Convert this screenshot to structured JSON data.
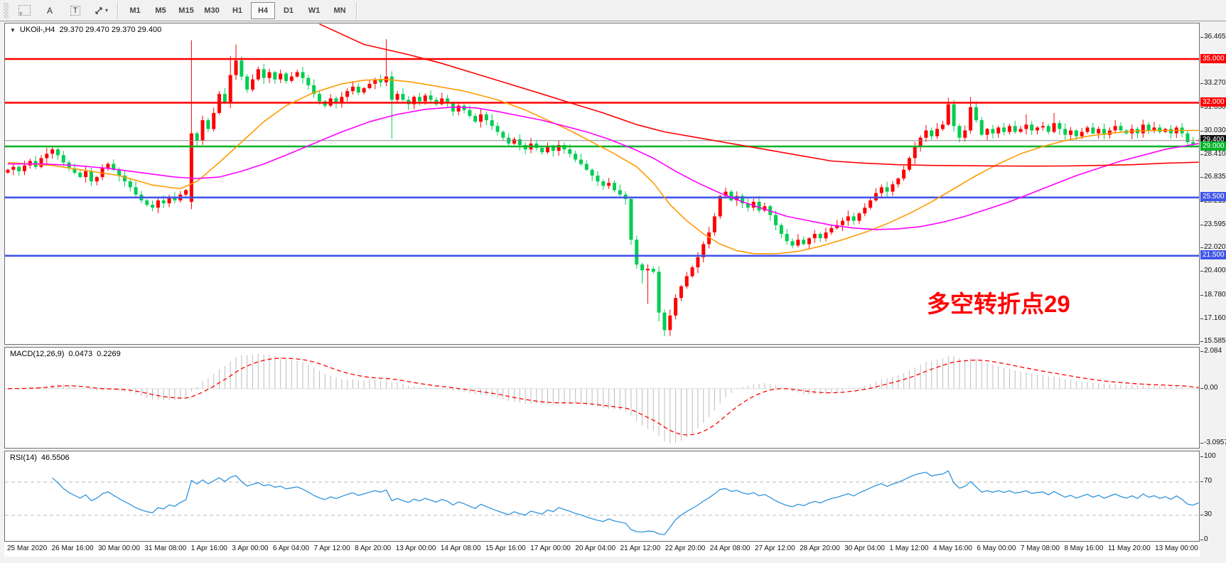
{
  "toolbar": {
    "tools": [
      {
        "id": "grid-snap",
        "label": "F"
      },
      {
        "id": "font",
        "label": "A"
      },
      {
        "id": "text",
        "label": "T"
      },
      {
        "id": "cursor",
        "label": "▾"
      }
    ],
    "timeframes": [
      "M1",
      "M5",
      "M15",
      "M30",
      "H1",
      "H4",
      "D1",
      "W1",
      "MN"
    ],
    "active_timeframe": "H4"
  },
  "header": {
    "collapse_arrow": "▼",
    "symbol": "UKOil-,H4",
    "ohlc": "29.370 29.470 29.370 29.400"
  },
  "indicators": {
    "macd": {
      "name": "MACD(12,26,9)",
      "value": "0.0473",
      "signal": "0.2269"
    },
    "rsi": {
      "name": "RSI(14)",
      "value": "46.5506"
    }
  },
  "annotation": {
    "text": "多空转折点29",
    "color": "#ff0000"
  },
  "price_scale": {
    "ticks": [
      "36.465",
      "34.845",
      "33.270",
      "31.650",
      "30.030",
      "28.410",
      "26.835",
      "25.215",
      "23.595",
      "22.020",
      "20.400",
      "18.780",
      "17.160",
      "15.585"
    ],
    "tags": [
      {
        "label": "35.000",
        "price": 35.0,
        "color": "#ff0000"
      },
      {
        "label": "32.000",
        "price": 32.0,
        "color": "#ff0000"
      },
      {
        "label": "29.400",
        "price": 29.4,
        "color": "#111111"
      },
      {
        "label": "29.000",
        "price": 29.0,
        "color": "#00b227"
      },
      {
        "label": "25.500",
        "price": 25.5,
        "color": "#4156e8"
      },
      {
        "label": "21.500",
        "price": 21.5,
        "color": "#4156e8"
      }
    ]
  },
  "macd_scale": [
    "2.084",
    "0.00",
    "-3.0957"
  ],
  "rsi_scale": [
    "100",
    "70",
    "30",
    "0"
  ],
  "chart_data": [
    {
      "type": "candlestick",
      "symbol": "UKOil-",
      "timeframe": "H4",
      "title_ohlc": [
        29.37,
        29.47,
        29.37,
        29.4
      ],
      "ylim": [
        15.2,
        37.0
      ],
      "y_ticks": [
        36.465,
        34.845,
        33.27,
        31.65,
        30.03,
        28.41,
        26.835,
        25.215,
        23.595,
        22.02,
        20.4,
        18.78,
        17.16,
        15.585
      ],
      "x_labels": [
        "25 Mar 2020",
        "26 Mar 16:00",
        "30 Mar 00:00",
        "31 Mar 08:00",
        "1 Apr 16:00",
        "3 Apr 00:00",
        "6 Apr 04:00",
        "7 Apr 12:00",
        "8 Apr 20:00",
        "13 Apr 00:00",
        "14 Apr 08:00",
        "15 Apr 16:00",
        "17 Apr 00:00",
        "20 Apr 04:00",
        "21 Apr 12:00",
        "22 Apr 20:00",
        "24 Apr 08:00",
        "27 Apr 12:00",
        "28 Apr 20:00",
        "30 Apr 04:00",
        "1 May 12:00",
        "4 May 16:00",
        "6 May 00:00",
        "7 May 08:00",
        "8 May 16:00",
        "11 May 20:00",
        "13 May 00:00"
      ],
      "levels": [
        {
          "price": 35.0,
          "color": "#ff0000",
          "role": "resistance"
        },
        {
          "price": 32.0,
          "color": "#ff0000",
          "role": "resistance"
        },
        {
          "price": 29.0,
          "color": "#00b227",
          "role": "pivot"
        },
        {
          "price": 25.5,
          "color": "#4156e8",
          "role": "support"
        },
        {
          "price": 21.5,
          "color": "#4156e8",
          "role": "support"
        }
      ],
      "current_price": 29.4,
      "bull_color": "#fe0000",
      "bear_color": "#00cd52",
      "closes": [
        27.4,
        27.6,
        27.3,
        27.7,
        28.0,
        27.6,
        28.2,
        28.5,
        28.8,
        28.4,
        27.9,
        27.5,
        27.2,
        26.9,
        27.3,
        26.6,
        26.9,
        27.5,
        27.8,
        27.4,
        27.0,
        26.6,
        26.2,
        25.7,
        25.3,
        25.0,
        24.8,
        25.3,
        25.1,
        25.5,
        25.3,
        25.7,
        26.0,
        29.9,
        29.4,
        30.8,
        30.2,
        31.3,
        32.6,
        32.0,
        33.9,
        34.9,
        33.8,
        32.9,
        33.6,
        34.3,
        33.7,
        34.1,
        33.6,
        34.0,
        33.5,
        33.8,
        34.1,
        33.7,
        33.2,
        32.6,
        32.1,
        31.8,
        32.3,
        32.0,
        32.4,
        32.8,
        33.1,
        32.7,
        33.0,
        33.3,
        33.6,
        33.4,
        33.8,
        32.2,
        32.6,
        32.2,
        31.9,
        32.4,
        32.1,
        32.5,
        32.2,
        31.9,
        32.3,
        32.0,
        31.4,
        31.8,
        31.5,
        31.1,
        30.7,
        31.2,
        30.8,
        30.4,
        30.0,
        29.6,
        29.2,
        29.5,
        29.1,
        28.8,
        29.2,
        28.9,
        28.6,
        29.0,
        28.7,
        29.1,
        28.8,
        28.5,
        28.1,
        27.8,
        27.4,
        27.0,
        26.6,
        26.3,
        26.5,
        26.0,
        25.7,
        25.4,
        22.6,
        20.9,
        20.5,
        20.6,
        20.4,
        17.6,
        16.4,
        17.4,
        18.6,
        19.4,
        20.1,
        20.7,
        21.4,
        22.3,
        23.1,
        24.2,
        25.6,
        25.9,
        25.3,
        25.6,
        25.1,
        24.8,
        25.2,
        24.6,
        24.9,
        24.3,
        23.6,
        23.0,
        22.5,
        22.2,
        22.6,
        22.3,
        22.7,
        23.0,
        22.7,
        23.1,
        23.4,
        23.6,
        23.9,
        24.2,
        23.9,
        24.4,
        24.8,
        25.3,
        25.8,
        26.2,
        25.9,
        26.4,
        26.8,
        27.4,
        28.2,
        29.0,
        29.6,
        30.1,
        29.7,
        30.2,
        30.5,
        31.9,
        30.4,
        29.6,
        30.1,
        31.7,
        30.8,
        29.8,
        30.2,
        29.9,
        30.3,
        30.0,
        30.4,
        30.0,
        30.2,
        30.5,
        30.1,
        30.3,
        30.4,
        30.0,
        30.6,
        30.2,
        29.8,
        30.1,
        29.7,
        30.0,
        30.3,
        29.9,
        30.2,
        29.8,
        30.1,
        30.4,
        30.1,
        29.9,
        30.2,
        29.9,
        30.5,
        30.1,
        30.3,
        30.0,
        30.2,
        29.9,
        30.3,
        29.9,
        29.3,
        29.15,
        29.4
      ],
      "open_overrides": {
        "0": 27.2,
        "33": 25.2,
        "214": 29.37
      },
      "wick_overrides": {
        "8": [
          28.95,
          null
        ],
        "26": [
          null,
          24.55
        ],
        "33": [
          36.29,
          24.7
        ],
        "40": [
          35.2,
          null
        ],
        "41": [
          36.0,
          null
        ],
        "68": [
          36.36,
          null
        ],
        "69": [
          null,
          29.55
        ],
        "114": [
          null,
          19.6
        ],
        "115": [
          null,
          18.2
        ],
        "117": [
          null,
          17.0
        ],
        "118": [
          null,
          15.98
        ],
        "119": [
          null,
          16.0
        ],
        "169": [
          32.35,
          null
        ],
        "173": [
          32.4,
          null
        ],
        "183": [
          31.2,
          null
        ],
        "188": [
          31.3,
          null
        ],
        "214": [
          29.47,
          29.37
        ]
      },
      "moving_averages": [
        {
          "name": "fast-ma",
          "color": "#ff9b00",
          "points": [
            [
              0,
              27.9
            ],
            [
              8,
              27.7
            ],
            [
              14,
              27.35
            ],
            [
              20,
              27.0
            ],
            [
              26,
              26.35
            ],
            [
              31,
              26.1
            ],
            [
              34,
              26.6
            ],
            [
              38,
              27.9
            ],
            [
              42,
              29.3
            ],
            [
              46,
              30.7
            ],
            [
              50,
              31.8
            ],
            [
              55,
              32.7
            ],
            [
              60,
              33.3
            ],
            [
              64,
              33.55
            ],
            [
              68,
              33.6
            ],
            [
              72,
              33.45
            ],
            [
              76,
              33.2
            ],
            [
              82,
              32.8
            ],
            [
              88,
              32.2
            ],
            [
              93,
              31.5
            ],
            [
              97,
              30.8
            ],
            [
              101,
              30.1
            ],
            [
              105,
              29.3
            ],
            [
              109,
              28.5
            ],
            [
              113,
              27.6
            ],
            [
              116,
              26.5
            ],
            [
              119,
              25.0
            ],
            [
              122,
              23.9
            ],
            [
              125,
              23.0
            ],
            [
              128,
              22.3
            ],
            [
              131,
              21.85
            ],
            [
              134,
              21.65
            ],
            [
              138,
              21.63
            ],
            [
              142,
              21.8
            ],
            [
              146,
              22.15
            ],
            [
              150,
              22.6
            ],
            [
              154,
              23.1
            ],
            [
              158,
              23.7
            ],
            [
              162,
              24.4
            ],
            [
              166,
              25.2
            ],
            [
              170,
              26.1
            ],
            [
              174,
              27.0
            ],
            [
              178,
              27.8
            ],
            [
              182,
              28.5
            ],
            [
              186,
              29.0
            ],
            [
              190,
              29.4
            ],
            [
              194,
              29.7
            ],
            [
              198,
              29.9
            ],
            [
              202,
              30.05
            ],
            [
              206,
              30.1
            ],
            [
              210,
              30.1
            ],
            [
              214,
              30.1
            ]
          ]
        },
        {
          "name": "slow-ma",
          "color": "#ff00ff",
          "points": [
            [
              0,
              27.8
            ],
            [
              6,
              27.8
            ],
            [
              12,
              27.7
            ],
            [
              18,
              27.5
            ],
            [
              24,
              27.2
            ],
            [
              30,
              26.9
            ],
            [
              34,
              26.8
            ],
            [
              38,
              26.9
            ],
            [
              42,
              27.3
            ],
            [
              46,
              27.8
            ],
            [
              50,
              28.4
            ],
            [
              55,
              29.2
            ],
            [
              60,
              30.0
            ],
            [
              65,
              30.7
            ],
            [
              70,
              31.2
            ],
            [
              75,
              31.55
            ],
            [
              80,
              31.7
            ],
            [
              84,
              31.65
            ],
            [
              88,
              31.4
            ],
            [
              92,
              31.1
            ],
            [
              96,
              30.8
            ],
            [
              100,
              30.4
            ],
            [
              104,
              30.0
            ],
            [
              108,
              29.5
            ],
            [
              112,
              28.9
            ],
            [
              116,
              28.2
            ],
            [
              120,
              27.3
            ],
            [
              124,
              26.5
            ],
            [
              128,
              25.8
            ],
            [
              132,
              25.2
            ],
            [
              136,
              24.7
            ],
            [
              140,
              24.2
            ],
            [
              144,
              23.9
            ],
            [
              148,
              23.6
            ],
            [
              152,
              23.4
            ],
            [
              156,
              23.3
            ],
            [
              160,
              23.35
            ],
            [
              164,
              23.5
            ],
            [
              168,
              23.8
            ],
            [
              172,
              24.2
            ],
            [
              176,
              24.7
            ],
            [
              180,
              25.2
            ],
            [
              184,
              25.8
            ],
            [
              188,
              26.4
            ],
            [
              192,
              27.0
            ],
            [
              196,
              27.5
            ],
            [
              200,
              28.0
            ],
            [
              204,
              28.4
            ],
            [
              208,
              28.8
            ],
            [
              211,
              29.0
            ],
            [
              214,
              29.2
            ]
          ]
        },
        {
          "name": "long-ma",
          "color": "#ff0000",
          "points": [
            [
              56,
              37.4
            ],
            [
              64,
              36.0
            ],
            [
              72,
              35.3
            ],
            [
              78,
              34.7
            ],
            [
              84,
              34.0
            ],
            [
              90,
              33.3
            ],
            [
              96,
              32.6
            ],
            [
              101,
              32.0
            ],
            [
              107,
              31.3
            ],
            [
              113,
              30.5
            ],
            [
              118,
              30.0
            ],
            [
              124,
              29.6
            ],
            [
              130,
              29.2
            ],
            [
              136,
              28.8
            ],
            [
              142,
              28.4
            ],
            [
              148,
              28.0
            ],
            [
              154,
              27.85
            ],
            [
              160,
              27.75
            ],
            [
              166,
              27.7
            ],
            [
              172,
              27.68
            ],
            [
              178,
              27.66
            ],
            [
              184,
              27.65
            ],
            [
              190,
              27.66
            ],
            [
              196,
              27.7
            ],
            [
              202,
              27.75
            ],
            [
              208,
              27.85
            ],
            [
              214,
              27.92
            ]
          ]
        }
      ]
    },
    {
      "type": "macd",
      "params": [
        12,
        26,
        9
      ],
      "current_value": 0.0473,
      "current_signal": 0.2269,
      "y_ticks": [
        2.084,
        0.0,
        -3.0957
      ],
      "histogram_color": "#bcbcbc",
      "signal_color": "#ff0000",
      "computed_from": "closes of chart_data[0]"
    },
    {
      "type": "rsi",
      "period": 14,
      "current_value": 46.5506,
      "y_ticks": [
        100,
        70,
        30,
        0
      ],
      "overbought": 70,
      "oversold": 30,
      "line_color": "#2f94dd"
    }
  ]
}
